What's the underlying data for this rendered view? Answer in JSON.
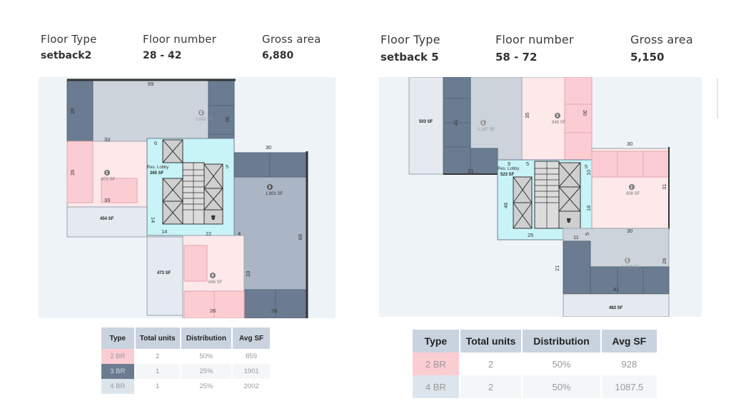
{
  "left": {
    "header": {
      "floor_type_label": "Floor Type",
      "floor_type_value": "setback2",
      "floor_number_label": "Floor number",
      "floor_number_value": "28 - 42",
      "gross_area_label": "Gross area",
      "gross_area_value": "6,880"
    },
    "plan": {
      "dims": [
        "69",
        "26",
        "30",
        "33",
        "6",
        "5",
        "26",
        "33",
        "14",
        "14",
        "22",
        "4",
        "30",
        "69",
        "33",
        "26",
        "26"
      ],
      "units": {
        "u1": {
          "num": "1",
          "area": "872 SF"
        },
        "u2": {
          "num": "2",
          "area": "2,002 SF"
        },
        "u3": {
          "num": "3",
          "area": "1,901 SF"
        },
        "u4": {
          "num": "4",
          "area": "846 SF"
        }
      },
      "balconies": [
        "454 SF",
        "473 SF"
      ],
      "lobby_label": "Res. Lobby",
      "lobby_area": "265 SF"
    },
    "table": {
      "headers": [
        "Type",
        "Total units",
        "Distribution",
        "Avg SF"
      ],
      "rows": [
        {
          "type": "2 BR",
          "units": "2",
          "dist": "50%",
          "avg": "859"
        },
        {
          "type": "3 BR",
          "units": "1",
          "dist": "25%",
          "avg": "1901"
        },
        {
          "type": "4 BR",
          "units": "1",
          "dist": "25%",
          "avg": "2002"
        }
      ]
    }
  },
  "right": {
    "header": {
      "floor_type_label": "Floor Type",
      "floor_type_value": "setback 5",
      "floor_number_label": "Floor number",
      "floor_number_value": "58 - 72",
      "gross_area_label": "Gross area",
      "gross_area_value": "5,150"
    },
    "plan": {
      "dims": [
        "41",
        "35",
        "30",
        "21",
        "9",
        "5",
        "5",
        "10",
        "30",
        "31",
        "26",
        "16",
        "5",
        "25",
        "11",
        "30",
        "21",
        "26",
        "41"
      ],
      "units": {
        "u1": {
          "num": "1",
          "area": "1,167 SF"
        },
        "u2": {
          "num": "2",
          "area": "908 SF"
        },
        "u3": {
          "num": "3",
          "area": "948 SF"
        },
        "u4": {
          "num": "1",
          "area": "1,086 SF"
        }
      },
      "balconies": [
        "503 SF",
        "483 SF"
      ],
      "lobby_label": "Res. Lobby",
      "lobby_area": "523 SF",
      "lobby_prefix": "46"
    },
    "table": {
      "headers": [
        "Type",
        "Total units",
        "Distribution",
        "Avg SF"
      ],
      "rows": [
        {
          "type": "2 BR",
          "units": "2",
          "dist": "50%",
          "avg": "928"
        },
        {
          "type": "4 BR",
          "units": "2",
          "dist": "50%",
          "avg": "1087.5"
        }
      ]
    },
    "colors": {
      "pink": "#fbcdd2",
      "dark": "#6b7b91",
      "light": "#cdd3da",
      "lobby": "#c8f4f8"
    }
  }
}
